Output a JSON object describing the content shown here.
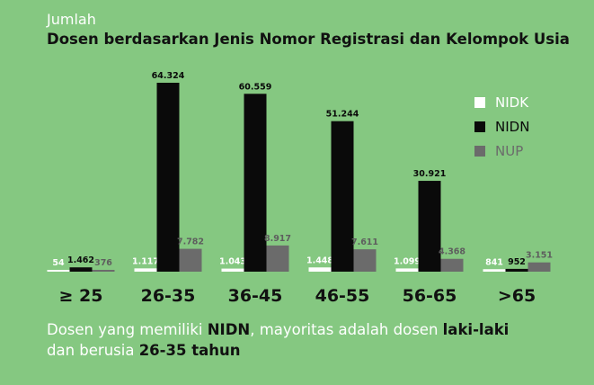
{
  "pre_title": "Jumlah",
  "title": "Dosen berdasarkan Jenis Nomor Registrasi dan Kelompok Usia",
  "footer": {
    "p1": "Dosen yang memiliki ",
    "b1": "NIDN",
    "p2": ", mayoritas adalah dosen ",
    "b2": "laki-laki",
    "p3": "dan berusia ",
    "b3": "26-35 tahun"
  },
  "colors": {
    "NIDK": "#ffffff",
    "NIDN": "#0a0a0a",
    "NUP": "#6b6b6b",
    "background": "#85c881"
  },
  "chart_data": {
    "type": "bar",
    "title": "Dosen berdasarkan Jenis Nomor Registrasi dan Kelompok Usia",
    "categories": [
      "≥ 25",
      "26-35",
      "36-45",
      "46-55",
      "56-65",
      ">65"
    ],
    "series": [
      {
        "name": "NIDK",
        "values": [
          54,
          1117,
          1043,
          1448,
          1099,
          841
        ],
        "labels": [
          "54",
          "1.117",
          "1.043",
          "1.448",
          "1.099",
          "841"
        ]
      },
      {
        "name": "NIDN",
        "values": [
          1462,
          64324,
          60559,
          51244,
          30921,
          952
        ],
        "labels": [
          "1.462",
          "64.324",
          "60.559",
          "51.244",
          "30.921",
          "952"
        ]
      },
      {
        "name": "NUP",
        "values": [
          376,
          7782,
          8917,
          7611,
          4368,
          3151
        ],
        "labels": [
          "376",
          "7.782",
          "8.917",
          "7.611",
          "4.368",
          "3.151"
        ]
      }
    ],
    "legend_position": "right",
    "grid": false
  }
}
